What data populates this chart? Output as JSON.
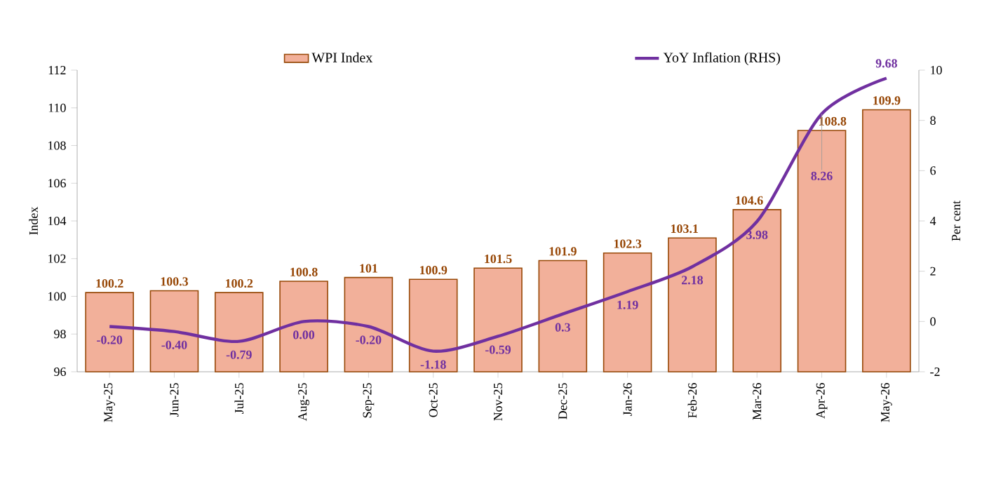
{
  "chart_data": {
    "type": "bar",
    "categories": [
      "May-25",
      "Jun-25",
      "Jul-25",
      "Aug-25",
      "Sep-25",
      "Oct-25",
      "Nov-25",
      "Dec-25",
      "Jan-26",
      "Feb-26",
      "Mar-26",
      "Apr-26",
      "May-26"
    ],
    "ylabel": "Index",
    "y2label": "Per cent",
    "ylim": [
      96,
      112
    ],
    "yticks": [
      96,
      98,
      100,
      102,
      104,
      106,
      108,
      110,
      112
    ],
    "y2lim": [
      -2,
      10
    ],
    "y2ticks": [
      -2,
      0,
      2,
      4,
      6,
      8,
      10
    ],
    "legend": "top",
    "grid": false,
    "series": [
      {
        "name": "WPI Index",
        "color": "#f2b09a",
        "values": [
          100.2,
          100.3,
          100.2,
          100.8,
          101,
          100.9,
          101.5,
          101.9,
          102.3,
          103.1,
          104.6,
          108.8,
          109.9
        ],
        "value_labels": [
          "100.2",
          "100.3",
          "100.2",
          "100.8",
          "101",
          "100.9",
          "101.5",
          "101.9",
          "102.3",
          "103.1",
          "104.6",
          "108.8",
          "109.9"
        ]
      },
      {
        "name": "YoY Inflation (RHS)",
        "type": "line",
        "axis": "y2",
        "color": "#7030a0",
        "line_style": "solid",
        "marker": "none",
        "values": [
          -0.2,
          -0.4,
          -0.79,
          0.0,
          -0.2,
          -1.18,
          -0.59,
          0.3,
          1.19,
          2.18,
          3.98,
          8.26,
          9.68
        ],
        "value_labels": [
          "-0.20",
          "-0.40",
          "-0.79",
          "0.00",
          "-0.20",
          "-1.18",
          "-0.59",
          "0.3",
          "1.19",
          "2.18",
          "3.98",
          "8.26",
          "9.68"
        ]
      }
    ]
  }
}
